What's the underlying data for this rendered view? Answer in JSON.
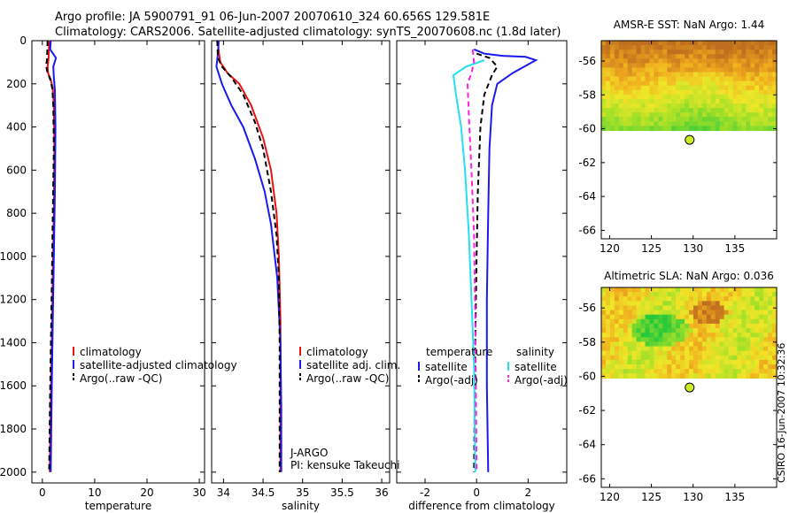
{
  "page": {
    "title_line1": "Argo profile: JA 5900791_91 06-Jun-2007 20070610_324 60.656S 129.581E",
    "title_line2": "Climatology: CARS2006. Satellite-adjusted climatology: synTS_20070608.nc (1.8d later)",
    "stamp": "CSIRO 16-Jun-2007 10:32:36"
  },
  "colors": {
    "climatology": "#ee1111",
    "satellite": "#1a1aee",
    "argo": "#000000",
    "sal_satellite": "#22e0f0",
    "sal_argo": "#ff22dd",
    "marker": "#ccee22"
  },
  "chart_data": [
    {
      "type": "line",
      "xlabel": "temperature",
      "ylabel": "",
      "xlim": [
        -2,
        31
      ],
      "ylim": [
        2050,
        0
      ],
      "grid": false,
      "x_ticks": [
        0,
        10,
        20,
        30
      ],
      "y_ticks": [
        0,
        200,
        400,
        600,
        800,
        1000,
        1200,
        1400,
        1600,
        1800,
        2000
      ],
      "legend": [
        "climatology",
        "satellite-adjusted climatology",
        "Argo(..raw -QC)"
      ],
      "legend_position": "lower-right",
      "series": [
        {
          "name": "climatology",
          "style": "solid",
          "points": [
            [
              1.3,
              0
            ],
            [
              1.2,
              80
            ],
            [
              1.0,
              120
            ],
            [
              1.1,
              150
            ],
            [
              1.6,
              180
            ],
            [
              2.0,
              220
            ],
            [
              2.2,
              300
            ],
            [
              2.3,
              500
            ],
            [
              2.2,
              800
            ],
            [
              2.0,
              1100
            ],
            [
              1.8,
              1400
            ],
            [
              1.6,
              1700
            ],
            [
              1.4,
              2000
            ]
          ]
        },
        {
          "name": "satellite-adjusted climatology",
          "style": "solid",
          "points": [
            [
              1.6,
              0
            ],
            [
              1.5,
              40
            ],
            [
              2.6,
              80
            ],
            [
              2.1,
              120
            ],
            [
              2.2,
              170
            ],
            [
              2.4,
              230
            ],
            [
              2.5,
              400
            ],
            [
              2.4,
              700
            ],
            [
              2.2,
              1000
            ],
            [
              2.0,
              1300
            ],
            [
              1.8,
              1600
            ],
            [
              1.6,
              2000
            ]
          ]
        },
        {
          "name": "Argo(..raw -QC)",
          "style": "dashed",
          "points": [
            [
              1.0,
              0
            ],
            [
              0.9,
              90
            ],
            [
              0.7,
              110
            ],
            [
              0.9,
              140
            ],
            [
              1.5,
              180
            ],
            [
              1.9,
              220
            ],
            [
              2.1,
              300
            ],
            [
              2.2,
              500
            ],
            [
              2.0,
              800
            ],
            [
              1.9,
              1000
            ],
            [
              1.7,
              1300
            ],
            [
              1.5,
              1600
            ],
            [
              1.3,
              2000
            ]
          ]
        }
      ]
    },
    {
      "type": "line",
      "xlabel": "salinity",
      "ylabel": "",
      "xlim": [
        33.85,
        36.1
      ],
      "ylim": [
        2050,
        0
      ],
      "grid": false,
      "x_ticks": [
        34,
        34.5,
        35,
        35.5,
        36
      ],
      "legend": [
        "climatology",
        "satellite adj. clim.",
        "Argo(..raw -QC)"
      ],
      "legend_position": "lower-right",
      "annotations": [
        "J-ARGO",
        "PI: kensuke Takeuchi"
      ],
      "series": [
        {
          "name": "climatology",
          "style": "solid",
          "points": [
            [
              33.93,
              0
            ],
            [
              33.94,
              50
            ],
            [
              33.96,
              100
            ],
            [
              34.05,
              150
            ],
            [
              34.2,
              200
            ],
            [
              34.35,
              300
            ],
            [
              34.5,
              450
            ],
            [
              34.6,
              600
            ],
            [
              34.67,
              800
            ],
            [
              34.7,
              1000
            ],
            [
              34.72,
              1300
            ],
            [
              34.72,
              1700
            ],
            [
              34.72,
              2000
            ]
          ]
        },
        {
          "name": "satellite adj. clim.",
          "style": "solid",
          "points": [
            [
              33.94,
              0
            ],
            [
              33.93,
              60
            ],
            [
              33.91,
              120
            ],
            [
              33.98,
              200
            ],
            [
              34.1,
              300
            ],
            [
              34.25,
              400
            ],
            [
              34.4,
              550
            ],
            [
              34.52,
              700
            ],
            [
              34.6,
              850
            ],
            [
              34.68,
              1100
            ],
            [
              34.72,
              1400
            ],
            [
              34.73,
              1700
            ],
            [
              34.73,
              2000
            ]
          ]
        },
        {
          "name": "Argo(..raw -QC)",
          "style": "dashed",
          "points": [
            [
              33.92,
              0
            ],
            [
              33.93,
              80
            ],
            [
              33.98,
              120
            ],
            [
              34.1,
              170
            ],
            [
              34.25,
              250
            ],
            [
              34.4,
              380
            ],
            [
              34.5,
              500
            ],
            [
              34.6,
              700
            ],
            [
              34.67,
              900
            ],
            [
              34.7,
              1100
            ],
            [
              34.71,
              1400
            ],
            [
              34.71,
              1700
            ],
            [
              34.71,
              2000
            ]
          ]
        }
      ]
    },
    {
      "type": "line",
      "xlabel": "difference from climatology",
      "ylabel": "",
      "xlim": [
        -3.1,
        3.5
      ],
      "ylim": [
        2050,
        0
      ],
      "grid": false,
      "x_ticks": [
        -2,
        0,
        2
      ],
      "legend": [
        "temperature",
        "satellite",
        "Argo(-adj)",
        "salinity",
        "satellite",
        "Argo(-adj)"
      ],
      "legend_position": "lower-right",
      "series": [
        {
          "name": "temperature satellite",
          "style": "solid",
          "points": [
            [
              -0.1,
              40
            ],
            [
              0.3,
              60
            ],
            [
              1.0,
              70
            ],
            [
              1.9,
              75
            ],
            [
              2.3,
              90
            ],
            [
              1.4,
              150
            ],
            [
              0.8,
              200
            ],
            [
              0.6,
              300
            ],
            [
              0.5,
              500
            ],
            [
              0.45,
              800
            ],
            [
              0.4,
              1200
            ],
            [
              0.4,
              1600
            ],
            [
              0.45,
              2000
            ]
          ]
        },
        {
          "name": "temperature Argo(-adj)",
          "style": "dashed",
          "points": [
            [
              0.0,
              60
            ],
            [
              0.5,
              80
            ],
            [
              0.8,
              120
            ],
            [
              0.6,
              160
            ],
            [
              0.3,
              250
            ],
            [
              0.15,
              400
            ],
            [
              0.05,
              700
            ],
            [
              0.0,
              1000
            ],
            [
              -0.05,
              1400
            ],
            [
              -0.1,
              2000
            ]
          ]
        },
        {
          "name": "salinity satellite",
          "style": "solid",
          "points": [
            [
              0.3,
              90
            ],
            [
              -0.4,
              120
            ],
            [
              -0.9,
              160
            ],
            [
              -0.8,
              250
            ],
            [
              -0.6,
              400
            ],
            [
              -0.45,
              600
            ],
            [
              -0.3,
              900
            ],
            [
              -0.2,
              1200
            ],
            [
              -0.1,
              1500
            ],
            [
              -0.05,
              2000
            ]
          ]
        },
        {
          "name": "salinity Argo(-adj)",
          "style": "dashed",
          "points": [
            [
              -0.15,
              40
            ],
            [
              -0.1,
              100
            ],
            [
              -0.2,
              150
            ],
            [
              -0.35,
              200
            ],
            [
              -0.3,
              350
            ],
            [
              -0.2,
              600
            ],
            [
              -0.1,
              900
            ],
            [
              -0.05,
              1300
            ],
            [
              0.0,
              2000
            ]
          ]
        }
      ]
    },
    {
      "type": "heatmap",
      "title": "AMSR-E SST: NaN Argo: 1.44",
      "xlim": [
        119,
        140
      ],
      "ylim": [
        -66.5,
        -54.8
      ],
      "x_ticks": [
        120,
        125,
        130,
        135
      ],
      "y_ticks": [
        -56,
        -58,
        -60,
        -62,
        -64,
        -66
      ],
      "data_lat_range": [
        -60.1,
        -54.8
      ],
      "colormap": "green-yellow-orange",
      "marker": {
        "lon": 129.581,
        "lat": -60.656
      }
    },
    {
      "type": "heatmap",
      "title": "Altimetric SLA: NaN Argo: 0.036",
      "xlim": [
        119,
        140
      ],
      "ylim": [
        -66.5,
        -54.8
      ],
      "x_ticks": [
        120,
        125,
        130,
        135
      ],
      "y_ticks": [
        -56,
        -58,
        -60,
        -62,
        -64,
        -66
      ],
      "data_lat_range": [
        -60.1,
        -54.8
      ],
      "colormap": "green-yellow-orange",
      "marker": {
        "lon": 129.581,
        "lat": -60.656
      }
    }
  ]
}
